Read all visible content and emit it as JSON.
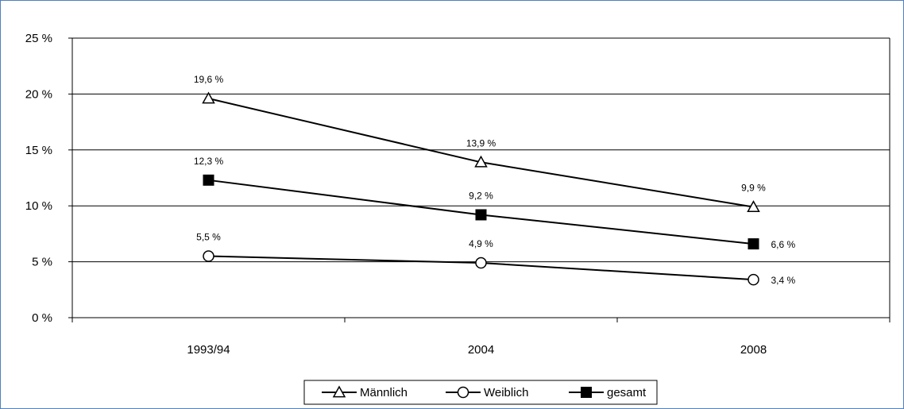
{
  "chart_data": {
    "type": "line",
    "categories": [
      "1993/94",
      "2004",
      "2008"
    ],
    "ylim": [
      0,
      25
    ],
    "yticks": [
      "0 %",
      "5 %",
      "10 %",
      "15 %",
      "20 %",
      "25 %"
    ],
    "ytick_values": [
      0,
      5,
      10,
      15,
      20,
      25
    ],
    "grid": true,
    "legend_position": "bottom",
    "series": [
      {
        "name": "Männlich",
        "marker": "triangle-open",
        "values": [
          19.6,
          13.9,
          9.9
        ],
        "labels": [
          "19,6 %",
          "13,9 %",
          "9,9 %"
        ]
      },
      {
        "name": "Weiblich",
        "marker": "circle-open",
        "values": [
          5.5,
          4.9,
          3.4
        ],
        "labels": [
          "5,5 %",
          "4,9 %",
          "3,4 %"
        ]
      },
      {
        "name": "gesamt",
        "marker": "square-filled",
        "values": [
          12.3,
          9.2,
          6.6
        ],
        "labels": [
          "12,3 %",
          "9,2 %",
          "6,6 %"
        ]
      }
    ],
    "colors": {
      "line": "#000000",
      "grid": "#000000",
      "frame": "#4f81bd"
    }
  }
}
